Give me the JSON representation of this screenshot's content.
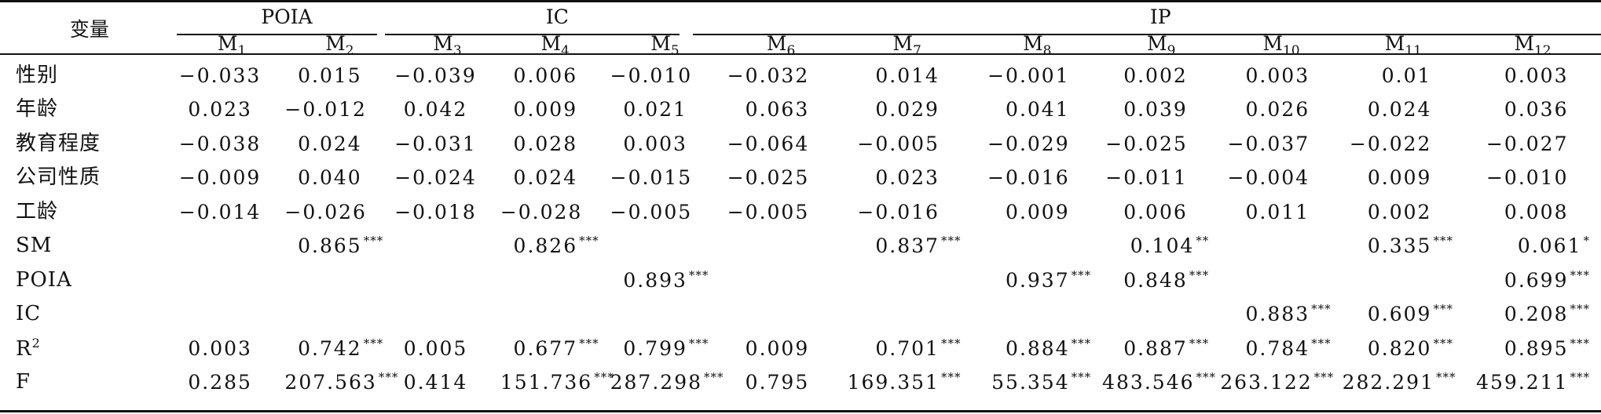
{
  "table": {
    "var_header": "变量",
    "groups": [
      "POIA",
      "IC",
      "IP"
    ],
    "models": [
      {
        "m": "M",
        "sub": "1"
      },
      {
        "m": "M",
        "sub": "2"
      },
      {
        "m": "M",
        "sub": "3"
      },
      {
        "m": "M",
        "sub": "4"
      },
      {
        "m": "M",
        "sub": "5"
      },
      {
        "m": "M",
        "sub": "6"
      },
      {
        "m": "M",
        "sub": "7"
      },
      {
        "m": "M",
        "sub": "8"
      },
      {
        "m": "M",
        "sub": "9"
      },
      {
        "m": "M",
        "sub": "10"
      },
      {
        "m": "M",
        "sub": "11"
      },
      {
        "m": "M",
        "sub": "12"
      }
    ],
    "rows": [
      {
        "label": "性别",
        "cells": [
          [
            "−0.033",
            ""
          ],
          [
            "0.015",
            ""
          ],
          [
            "−0.039",
            ""
          ],
          [
            "0.006",
            ""
          ],
          [
            "−0.010",
            ""
          ],
          [
            "−0.032",
            ""
          ],
          [
            "0.014",
            ""
          ],
          [
            "−0.001",
            ""
          ],
          [
            "0.002",
            ""
          ],
          [
            "0.003",
            ""
          ],
          [
            "0.01",
            ""
          ],
          [
            "0.003",
            ""
          ]
        ]
      },
      {
        "label": "年龄",
        "cells": [
          [
            "0.023",
            ""
          ],
          [
            "−0.012",
            ""
          ],
          [
            "0.042",
            ""
          ],
          [
            "0.009",
            ""
          ],
          [
            "0.021",
            ""
          ],
          [
            "0.063",
            ""
          ],
          [
            "0.029",
            ""
          ],
          [
            "0.041",
            ""
          ],
          [
            "0.039",
            ""
          ],
          [
            "0.026",
            ""
          ],
          [
            "0.024",
            ""
          ],
          [
            "0.036",
            ""
          ]
        ]
      },
      {
        "label": "教育程度",
        "cells": [
          [
            "−0.038",
            ""
          ],
          [
            "0.024",
            ""
          ],
          [
            "−0.031",
            ""
          ],
          [
            "0.028",
            ""
          ],
          [
            "0.003",
            ""
          ],
          [
            "−0.064",
            ""
          ],
          [
            "−0.005",
            ""
          ],
          [
            "−0.029",
            ""
          ],
          [
            "−0.025",
            ""
          ],
          [
            "−0.037",
            ""
          ],
          [
            "−0.022",
            ""
          ],
          [
            "−0.027",
            ""
          ]
        ]
      },
      {
        "label": "公司性质",
        "cells": [
          [
            "−0.009",
            ""
          ],
          [
            "0.040",
            ""
          ],
          [
            "−0.024",
            ""
          ],
          [
            "0.024",
            ""
          ],
          [
            "−0.015",
            ""
          ],
          [
            "−0.025",
            ""
          ],
          [
            "0.023",
            ""
          ],
          [
            "−0.016",
            ""
          ],
          [
            "−0.011",
            ""
          ],
          [
            "−0.004",
            ""
          ],
          [
            "0.009",
            ""
          ],
          [
            "−0.010",
            ""
          ]
        ]
      },
      {
        "label": "工龄",
        "cells": [
          [
            "−0.014",
            ""
          ],
          [
            "−0.026",
            ""
          ],
          [
            "−0.018",
            ""
          ],
          [
            "−0.028",
            ""
          ],
          [
            "−0.005",
            ""
          ],
          [
            "−0.005",
            ""
          ],
          [
            "−0.016",
            ""
          ],
          [
            "0.009",
            ""
          ],
          [
            "0.006",
            ""
          ],
          [
            "0.011",
            ""
          ],
          [
            "0.002",
            ""
          ],
          [
            "0.008",
            ""
          ]
        ]
      },
      {
        "label": "SM",
        "cells": [
          [
            "",
            ""
          ],
          [
            "0.865",
            "***"
          ],
          [
            "",
            ""
          ],
          [
            "0.826",
            "***"
          ],
          [
            "",
            ""
          ],
          [
            "",
            ""
          ],
          [
            "0.837",
            "***"
          ],
          [
            "",
            ""
          ],
          [
            "0.104",
            "**"
          ],
          [
            "",
            ""
          ],
          [
            "0.335",
            "***"
          ],
          [
            "0.061",
            "*"
          ]
        ]
      },
      {
        "label": "POIA",
        "cells": [
          [
            "",
            ""
          ],
          [
            "",
            ""
          ],
          [
            "",
            ""
          ],
          [
            "",
            ""
          ],
          [
            "0.893",
            "***"
          ],
          [
            "",
            ""
          ],
          [
            "",
            ""
          ],
          [
            "0.937",
            "***"
          ],
          [
            "0.848",
            "***"
          ],
          [
            "",
            ""
          ],
          [
            "",
            ""
          ],
          [
            "0.699",
            "***"
          ]
        ]
      },
      {
        "label": "IC",
        "cells": [
          [
            "",
            ""
          ],
          [
            "",
            ""
          ],
          [
            "",
            ""
          ],
          [
            "",
            ""
          ],
          [
            "",
            ""
          ],
          [
            "",
            ""
          ],
          [
            "",
            ""
          ],
          [
            "",
            ""
          ],
          [
            "",
            ""
          ],
          [
            "0.883",
            "***"
          ],
          [
            "0.609",
            "***"
          ],
          [
            "0.208",
            "***"
          ]
        ]
      },
      {
        "label": "R",
        "label_sup": "2",
        "cells": [
          [
            "0.003",
            ""
          ],
          [
            "0.742",
            "***"
          ],
          [
            "0.005",
            ""
          ],
          [
            "0.677",
            "***"
          ],
          [
            "0.799",
            "***"
          ],
          [
            "0.009",
            ""
          ],
          [
            "0.701",
            "***"
          ],
          [
            "0.884",
            "***"
          ],
          [
            "0.887",
            "***"
          ],
          [
            "0.784",
            "***"
          ],
          [
            "0.820",
            "***"
          ],
          [
            "0.895",
            "***"
          ]
        ]
      },
      {
        "label": "F",
        "cells": [
          [
            "0.285",
            ""
          ],
          [
            "207.563",
            "***"
          ],
          [
            "0.414",
            ""
          ],
          [
            "151.736",
            "***"
          ],
          [
            "287.298",
            "***"
          ],
          [
            "0.795",
            ""
          ],
          [
            "169.351",
            "***"
          ],
          [
            "55.354",
            "***"
          ],
          [
            "483.546",
            "***"
          ],
          [
            "263.122",
            "***"
          ],
          [
            "282.291",
            "***"
          ],
          [
            "459.211",
            "***"
          ]
        ]
      }
    ]
  }
}
